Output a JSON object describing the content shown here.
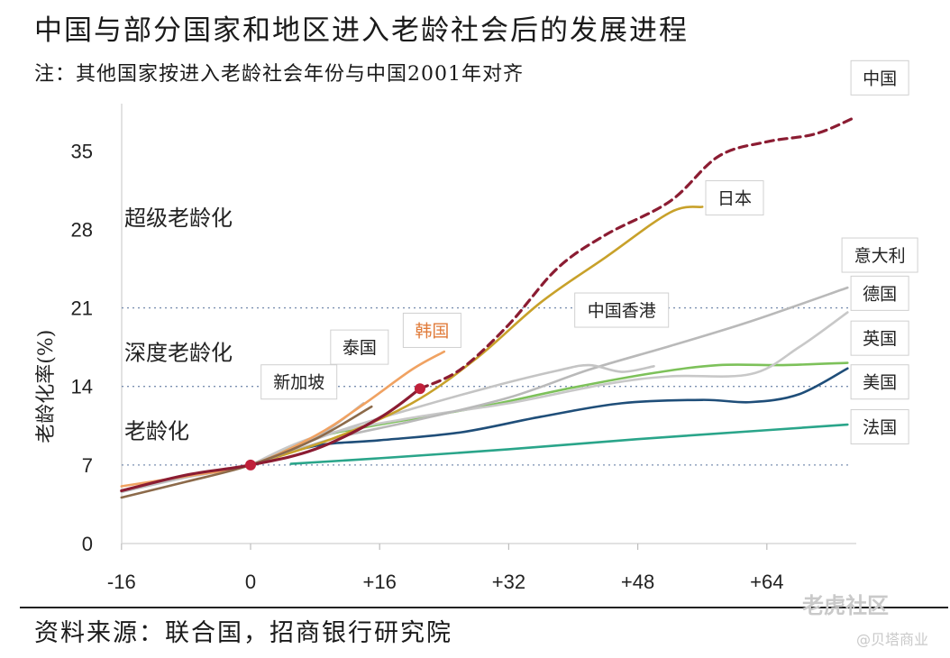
{
  "title": "中国与部分国家和地区进入老龄社会后的发展进程",
  "subtitle": "注：其他国家按进入老龄社会年份与中国2001年对齐",
  "source": "资料来源：联合国，招商银行研究院",
  "watermarks": [
    "老虎社区",
    "@贝塔商业"
  ],
  "chart_data": {
    "type": "line",
    "ylabel": "老龄化率(%)",
    "xlim": [
      -16,
      74
    ],
    "ylim": [
      0,
      38
    ],
    "xticks": [
      "-16",
      "0",
      "+16",
      "+32",
      "+48",
      "+64"
    ],
    "xtick_values": [
      -16,
      0,
      16,
      32,
      48,
      64
    ],
    "yticks": [
      "0",
      "7",
      "14",
      "21",
      "28",
      "35"
    ],
    "ytick_values": [
      0,
      7,
      14,
      21,
      28,
      35
    ],
    "reference_lines": [
      7,
      14,
      21
    ],
    "zones": [
      {
        "label": "超级老龄化",
        "y": 29
      },
      {
        "label": "深度老龄化",
        "y": 17
      },
      {
        "label": "老龄化",
        "y": 10
      }
    ],
    "markers": [
      {
        "x": 0,
        "y": 7,
        "color": "#c0203a"
      },
      {
        "x": 21,
        "y": 13.8,
        "color": "#c0203a"
      }
    ],
    "series": [
      {
        "name": "法国",
        "color": "#2aa58a",
        "dashed": false,
        "points": [
          [
            5,
            7.1
          ],
          [
            16,
            7.6
          ],
          [
            32,
            8.4
          ],
          [
            48,
            9.3
          ],
          [
            64,
            10.1
          ],
          [
            74,
            10.6
          ]
        ]
      },
      {
        "name": "美国",
        "color": "#1f4e79",
        "dashed": false,
        "points": [
          [
            0,
            7
          ],
          [
            8,
            8.7
          ],
          [
            16,
            9.2
          ],
          [
            26,
            9.9
          ],
          [
            36,
            11.3
          ],
          [
            46,
            12.5
          ],
          [
            56,
            12.8
          ],
          [
            62,
            12.6
          ],
          [
            68,
            13.3
          ],
          [
            74,
            15.6
          ]
        ]
      },
      {
        "name": "英国",
        "color": "#7dc15a",
        "dashed": false,
        "points": [
          [
            0,
            7
          ],
          [
            8,
            9.4
          ],
          [
            16,
            10.6
          ],
          [
            28,
            12.1
          ],
          [
            40,
            13.9
          ],
          [
            50,
            15.2
          ],
          [
            58,
            15.9
          ],
          [
            66,
            15.9
          ],
          [
            74,
            16.1
          ]
        ]
      },
      {
        "name": "德国",
        "color": "#c8c8c8",
        "dashed": false,
        "points": [
          [
            0,
            7
          ],
          [
            8,
            9.5
          ],
          [
            20,
            11.2
          ],
          [
            32,
            12.5
          ],
          [
            44,
            14.2
          ],
          [
            52,
            14.9
          ],
          [
            62,
            15.1
          ],
          [
            68,
            17.5
          ],
          [
            74,
            20.6
          ]
        ]
      },
      {
        "name": "意大利",
        "color": "#b9b9b9",
        "dashed": false,
        "points": [
          [
            0,
            7
          ],
          [
            10,
            9.3
          ],
          [
            20,
            10.9
          ],
          [
            32,
            13
          ],
          [
            42,
            15.5
          ],
          [
            52,
            17.6
          ],
          [
            62,
            19.8
          ],
          [
            74,
            22.8
          ]
        ]
      },
      {
        "name": "中国香港",
        "color": "#c4c4c4",
        "dashed": false,
        "points": [
          [
            0,
            7
          ],
          [
            10,
            9.8
          ],
          [
            20,
            12
          ],
          [
            30,
            14
          ],
          [
            38,
            15.4
          ],
          [
            42,
            15.9
          ],
          [
            46,
            15.3
          ],
          [
            50,
            15.8
          ]
        ]
      },
      {
        "name": "日本",
        "color": "#c8a12a",
        "dashed": false,
        "points": [
          [
            0,
            7
          ],
          [
            10,
            9.3
          ],
          [
            20,
            12.5
          ],
          [
            28,
            16.5
          ],
          [
            36,
            21.5
          ],
          [
            44,
            25.5
          ],
          [
            52,
            29.5
          ],
          [
            56,
            30
          ]
        ]
      },
      {
        "name": "泰国",
        "color": "#bdbdbd",
        "dashed": false,
        "points": [
          [
            -16,
            4.6
          ],
          [
            -8,
            5.9
          ],
          [
            0,
            7
          ],
          [
            8,
            9.4
          ],
          [
            14,
            12.5
          ]
        ]
      },
      {
        "name": "韩国",
        "color": "#f0a262",
        "dashed": false,
        "points": [
          [
            -16,
            5.1
          ],
          [
            -8,
            6
          ],
          [
            0,
            7
          ],
          [
            8,
            9.6
          ],
          [
            14,
            12.4
          ],
          [
            20,
            15.5
          ],
          [
            24,
            17.1
          ]
        ]
      },
      {
        "name": "新加坡",
        "color": "#8c6a4a",
        "dashed": false,
        "points": [
          [
            -16,
            4.1
          ],
          [
            -8,
            5.5
          ],
          [
            0,
            7
          ],
          [
            8,
            9.3
          ],
          [
            15,
            12.2
          ]
        ]
      },
      {
        "name": "中国",
        "color": "#8b1c32",
        "dashed": false,
        "points": [
          [
            -16,
            4.7
          ],
          [
            -8,
            6.1
          ],
          [
            0,
            7
          ],
          [
            8,
            8.4
          ],
          [
            16,
            11.2
          ],
          [
            21,
            13.8
          ]
        ]
      },
      {
        "name": "中国",
        "color": "#8b1c32",
        "dashed": true,
        "points": [
          [
            21,
            13.8
          ],
          [
            26,
            15.5
          ],
          [
            32,
            19.5
          ],
          [
            38,
            24.5
          ],
          [
            44,
            27.5
          ],
          [
            52,
            30.5
          ],
          [
            58,
            34.5
          ],
          [
            64,
            35.8
          ],
          [
            70,
            36.5
          ],
          [
            75,
            38
          ]
        ]
      }
    ],
    "labels": [
      {
        "text": "中国",
        "x": 78,
        "y": 41.5,
        "color": "#222"
      },
      {
        "text": "日本",
        "x": 60,
        "y": 30.8,
        "color": "#222"
      },
      {
        "text": "意大利",
        "x": 78,
        "y": 25.7,
        "color": "#222"
      },
      {
        "text": "德国",
        "x": 78,
        "y": 22.3,
        "color": "#222"
      },
      {
        "text": "中国香港",
        "x": 46,
        "y": 20.8,
        "color": "#222"
      },
      {
        "text": "英国",
        "x": 78,
        "y": 18.3,
        "color": "#222"
      },
      {
        "text": "泰国",
        "x": 13.5,
        "y": 17.5,
        "color": "#222"
      },
      {
        "text": "韩国",
        "x": 22.5,
        "y": 19,
        "color": "#e07b3a"
      },
      {
        "text": "新加坡",
        "x": 6,
        "y": 14.4,
        "color": "#222"
      },
      {
        "text": "美国",
        "x": 78,
        "y": 14.4,
        "color": "#222"
      },
      {
        "text": "法国",
        "x": 78,
        "y": 10.4,
        "color": "#222"
      }
    ]
  }
}
